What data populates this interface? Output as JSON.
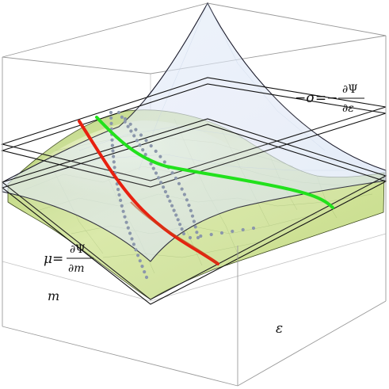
{
  "labels": {
    "sigma_lhs": "−σ=−",
    "sigma_num": "∂Ψ",
    "sigma_den": "∂ε",
    "mu_lhs": "μ=",
    "mu_num": "∂Ψ",
    "mu_den": "∂m",
    "axis_m": "m",
    "axis_epsilon": "ε"
  },
  "colors": {
    "upper_surface": "#dbe6f6",
    "lower_surface": "#c8dc88",
    "red_curve": "#e8200f",
    "green_curve": "#22e11c",
    "dots": "#8b97ab",
    "box_edges": "#9a9a9a"
  }
}
